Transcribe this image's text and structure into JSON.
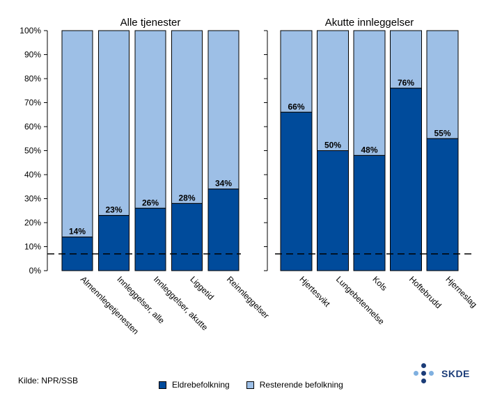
{
  "chart_data": {
    "type": "bar",
    "stacked": true,
    "y_axis": {
      "ylim": [
        0,
        100
      ],
      "tick_labels": [
        "0%",
        "10%",
        "20%",
        "30%",
        "40%",
        "50%",
        "60%",
        "70%",
        "80%",
        "90%",
        "100%"
      ],
      "grid": false
    },
    "reference_line": {
      "y": 7,
      "style": "dashed"
    },
    "panels": [
      {
        "title": "Alle tjenester",
        "categories": [
          "Almennlegetjenesten",
          "Innleggelser, alle",
          "Innleggelser, akutte",
          "Liggetid",
          "Reinnleggelser"
        ],
        "series": [
          {
            "name": "Eldrebefolkning",
            "values": [
              14,
              23,
              26,
              28,
              34
            ]
          },
          {
            "name": "Resterende befolkning",
            "values": [
              86,
              77,
              74,
              72,
              66
            ]
          }
        ],
        "data_labels": [
          "14%",
          "23%",
          "26%",
          "28%",
          "34%"
        ]
      },
      {
        "title": "Akutte innleggelser",
        "categories": [
          "Hjertesvikt",
          "Lungebetennelse",
          "Kols",
          "Hoftebrudd",
          "Hjerneslag"
        ],
        "series": [
          {
            "name": "Eldrebefolkning",
            "values": [
              66,
              50,
              48,
              76,
              55
            ]
          },
          {
            "name": "Resterende befolkning",
            "values": [
              34,
              50,
              52,
              24,
              45
            ]
          }
        ],
        "data_labels": [
          "66%",
          "50%",
          "48%",
          "76%",
          "55%"
        ]
      }
    ],
    "legend": {
      "position": "bottom",
      "entries": [
        "Eldrebefolkning",
        "Resterende befolkning"
      ]
    }
  },
  "colors": {
    "eldre": "#004b9b",
    "resterende": "#9dbfe6",
    "logo_dark": "#1b3c78",
    "logo_light": "#7fb0e0"
  },
  "footer": {
    "source": "Kilde: NPR/SSB",
    "legend_eldre": "Eldrebefolkning",
    "legend_resterende": "Resterende befolkning",
    "logo_text": "SKDE"
  }
}
